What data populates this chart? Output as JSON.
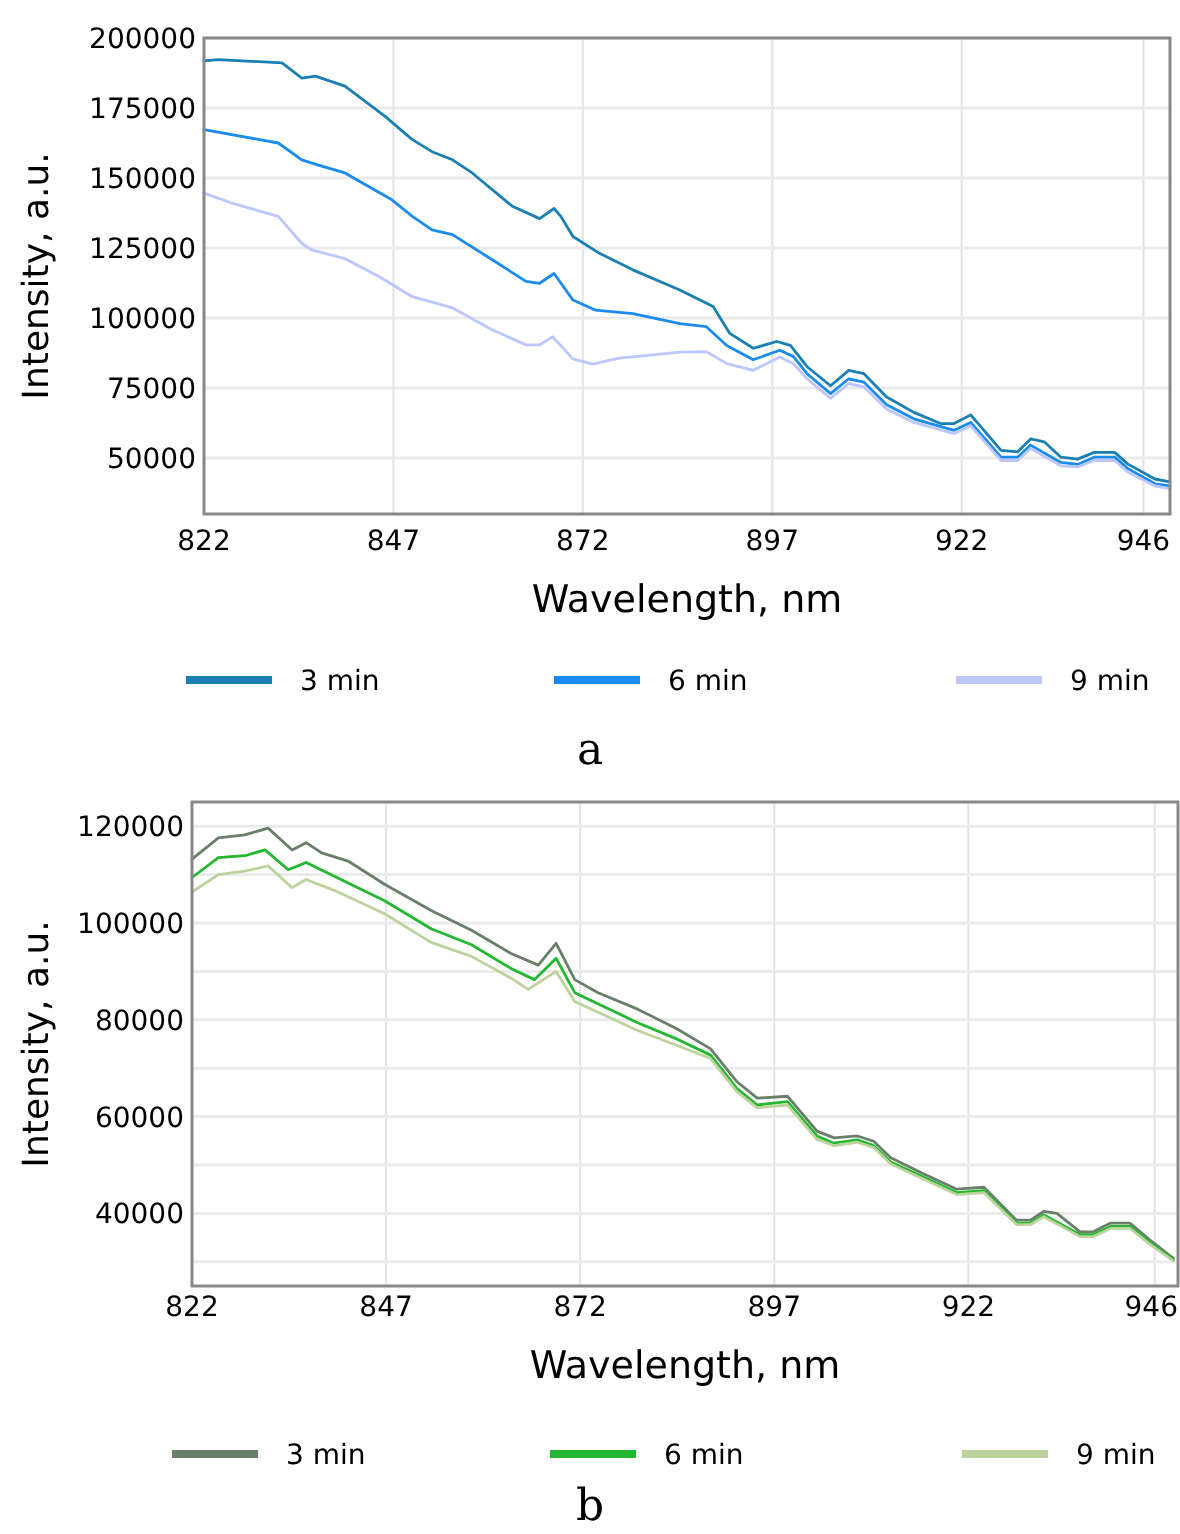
{
  "chart_data": [
    {
      "type": "line",
      "xlabel": "Wavelength, nm",
      "ylabel": "Intensity, a.u.",
      "annotations": [
        "a"
      ],
      "grid": true,
      "legend": "bottom",
      "marker": "none",
      "line_style": "solid",
      "xlim": [
        822,
        949.5
      ],
      "xticks": [
        822,
        847,
        872,
        897,
        922,
        946
      ],
      "ylim": [
        30000,
        200000
      ],
      "yticks": [
        50000,
        75000,
        100000,
        125000,
        150000,
        175000,
        200000
      ],
      "series": [
        {
          "name": "3 min",
          "color": "#1a80b4",
          "x": [
            822,
            823.9,
            832.3,
            834.9,
            836.7,
            840.6,
            845.9,
            849.5,
            852.1,
            854.8,
            857.4,
            862.7,
            866.3,
            868.2,
            869.1,
            870.7,
            874.2,
            878.6,
            884.8,
            889.2,
            891.4,
            894.5,
            897.6,
            899.4,
            901.6,
            904.7,
            907.1,
            909.1,
            912.1,
            915.7,
            919.2,
            921,
            923.2,
            927.2,
            929.4,
            931.1,
            932.9,
            935.1,
            937.3,
            939.5,
            942.2,
            943.9,
            947.5,
            949.5
          ],
          "values": [
            191800,
            192300,
            191100,
            185700,
            186400,
            182800,
            172000,
            163700,
            159400,
            156500,
            151800,
            139900,
            135500,
            139100,
            136300,
            129100,
            123100,
            117200,
            110000,
            104100,
            94500,
            89200,
            91600,
            90200,
            82600,
            75800,
            81300,
            80100,
            71800,
            66300,
            62300,
            62300,
            65400,
            52700,
            52200,
            56800,
            55800,
            50300,
            49600,
            52000,
            52000,
            47900,
            42500,
            41500
          ]
        },
        {
          "name": "6 min",
          "color": "#1a8cf0",
          "x": [
            822,
            831.8,
            834.9,
            837.1,
            840.6,
            846.8,
            849.5,
            852.1,
            854.8,
            860.1,
            864.5,
            866.3,
            868.2,
            870.7,
            873.7,
            878.6,
            884.8,
            888.3,
            891,
            894.5,
            898,
            899.8,
            901.6,
            904.7,
            907.1,
            909.1,
            912.1,
            915.7,
            921,
            923.2,
            927.2,
            929.4,
            931.1,
            935.1,
            937.3,
            939.5,
            942.2,
            943.9,
            947.5,
            949.5
          ],
          "values": [
            167300,
            162500,
            156500,
            154600,
            151800,
            142200,
            136300,
            131500,
            129800,
            120700,
            113100,
            112400,
            115900,
            106400,
            102800,
            101600,
            98000,
            96900,
            90200,
            85100,
            88500,
            86200,
            80100,
            73000,
            78300,
            77100,
            69000,
            64000,
            59900,
            62700,
            50300,
            50300,
            54600,
            48400,
            47700,
            50300,
            50300,
            46300,
            40800,
            40000
          ]
        },
        {
          "name": "9 min",
          "color": "#bcc6ff",
          "x": [
            822,
            825.7,
            831.8,
            834.9,
            836.2,
            840.6,
            845.1,
            849.5,
            854.8,
            860.1,
            864.5,
            866.3,
            868,
            870.7,
            873.3,
            876.8,
            880.3,
            884.8,
            888.3,
            891,
            894.5,
            898,
            899.8,
            901.6,
            904.7,
            907.1,
            909.1,
            912.1,
            915.7,
            921,
            923.2,
            927.2,
            929.4,
            931.1,
            935.1,
            937.3,
            939.5,
            942.2,
            943.9,
            947.5,
            949.5
          ],
          "values": [
            144600,
            141000,
            136300,
            126700,
            124300,
            121200,
            114800,
            107600,
            103600,
            95700,
            90400,
            90400,
            93300,
            85400,
            83500,
            85700,
            86600,
            87800,
            88000,
            83700,
            81300,
            86100,
            83700,
            78300,
            71300,
            76600,
            75400,
            67500,
            62700,
            58700,
            61500,
            49100,
            49100,
            53400,
            47200,
            46800,
            49100,
            49100,
            45000,
            40000,
            39100
          ]
        }
      ]
    },
    {
      "type": "line",
      "xlabel": "Wavelength, nm",
      "ylabel": "Intensity, a.u.",
      "annotations": [
        "b"
      ],
      "grid": true,
      "legend": "bottom",
      "marker": "none",
      "line_style": "solid",
      "xlim": [
        822,
        949
      ],
      "xticks": [
        822,
        847,
        872,
        897,
        922,
        946
      ],
      "ylim": [
        25000,
        125000
      ],
      "yticks": [
        {
          "value": 30000,
          "label": null
        },
        40000,
        {
          "value": 50000,
          "label": null
        },
        60000,
        {
          "value": 70000,
          "label": null
        },
        80000,
        {
          "value": 90000,
          "label": null
        },
        100000,
        {
          "value": 110000,
          "label": null
        },
        120000
      ],
      "series": [
        {
          "name": "3 min",
          "color": "#6a7f6a",
          "x": [
            822,
            825.4,
            828.8,
            831.8,
            834.9,
            836.7,
            838.7,
            842.1,
            846.8,
            852.8,
            858,
            863.1,
            866.6,
            868.9,
            871.3,
            874.3,
            879.4,
            884.5,
            888.8,
            892.2,
            894.8,
            898.7,
            902.5,
            904.7,
            907.7,
            909.8,
            912,
            916.2,
            920.5,
            924,
            928.2,
            930,
            931.7,
            933.4,
            936.4,
            938.1,
            940.3,
            942.8,
            945.4,
            948.4
          ],
          "values": [
            113200,
            117600,
            118200,
            119600,
            115100,
            116600,
            114500,
            112800,
            108000,
            102600,
            98500,
            93700,
            91300,
            95800,
            88300,
            85600,
            82200,
            78100,
            74000,
            67200,
            63800,
            64200,
            57000,
            55600,
            56000,
            54900,
            51500,
            48200,
            45000,
            45400,
            38600,
            38600,
            40400,
            40000,
            36200,
            36200,
            38000,
            38000,
            34500,
            30700
          ]
        },
        {
          "name": "6 min",
          "color": "#22b830",
          "x": [
            822,
            825.4,
            828.8,
            831.4,
            834.4,
            836.7,
            840.4,
            846.8,
            852.8,
            858,
            863.1,
            866.1,
            868.9,
            871.3,
            879.4,
            884.5,
            888.8,
            892.2,
            894.8,
            898.7,
            902.5,
            904.7,
            907.7,
            909.8,
            912,
            916.2,
            920.5,
            924,
            928.2,
            930,
            931.7,
            936.4,
            938.1,
            940.3,
            942.8,
            945.4,
            948.4
          ],
          "values": [
            109400,
            113500,
            113900,
            115100,
            111000,
            112500,
            109600,
            104600,
            98800,
            95500,
            90600,
            88300,
            92700,
            85600,
            79400,
            76000,
            72700,
            65800,
            62400,
            63100,
            56000,
            54500,
            55200,
            54000,
            50600,
            47500,
            44300,
            44700,
            38000,
            38000,
            39700,
            35600,
            35600,
            37300,
            37300,
            34000,
            30400
          ]
        },
        {
          "name": "9 min",
          "color": "#bcd39c",
          "x": [
            822,
            825.4,
            828.8,
            831.8,
            834.9,
            836.7,
            840.4,
            846.8,
            852.8,
            858,
            863.1,
            865.3,
            868.9,
            871.3,
            879.4,
            884.5,
            888.8,
            892.2,
            894.8,
            898.7,
            902.5,
            904.7,
            907.7,
            909.8,
            912,
            916.2,
            920.5,
            924,
            928.2,
            930,
            931.7,
            936.4,
            938.1,
            940.3,
            942.8,
            945.4,
            948.4
          ],
          "values": [
            106400,
            110000,
            110700,
            111800,
            107300,
            109000,
            106700,
            101900,
            96000,
            93100,
            88600,
            86300,
            90000,
            83800,
            77800,
            74700,
            72000,
            65100,
            61800,
            62400,
            55300,
            54000,
            54700,
            53600,
            50200,
            47100,
            43900,
            44300,
            37700,
            37700,
            39300,
            35200,
            35200,
            36900,
            36900,
            33600,
            30200
          ]
        }
      ]
    }
  ]
}
